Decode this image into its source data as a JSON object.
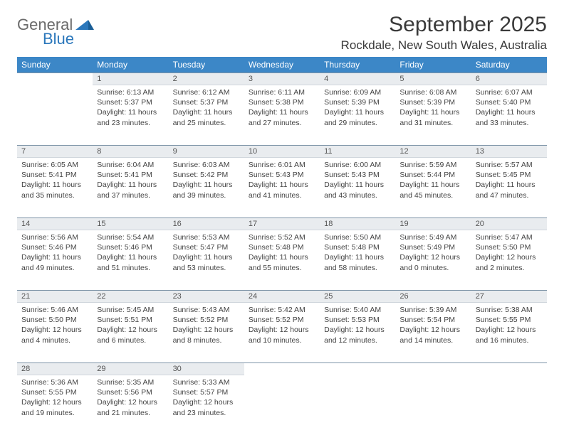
{
  "logo": {
    "word1": "General",
    "word2": "Blue"
  },
  "title": "September 2025",
  "location": "Rockdale, New South Wales, Australia",
  "colors": {
    "header_bg": "#3c87c7",
    "header_text": "#ffffff",
    "daynum_bg": "#e9ecef",
    "daynum_border_top": "#7e94a8",
    "logo_gray": "#6a6a6a",
    "logo_blue": "#2b77bb"
  },
  "weekdays": [
    "Sunday",
    "Monday",
    "Tuesday",
    "Wednesday",
    "Thursday",
    "Friday",
    "Saturday"
  ],
  "first_weekday_index": 1,
  "days_in_month": 30,
  "days": {
    "1": {
      "sunrise": "6:13 AM",
      "sunset": "5:37 PM",
      "daylight": "11 hours and 23 minutes."
    },
    "2": {
      "sunrise": "6:12 AM",
      "sunset": "5:37 PM",
      "daylight": "11 hours and 25 minutes."
    },
    "3": {
      "sunrise": "6:11 AM",
      "sunset": "5:38 PM",
      "daylight": "11 hours and 27 minutes."
    },
    "4": {
      "sunrise": "6:09 AM",
      "sunset": "5:39 PM",
      "daylight": "11 hours and 29 minutes."
    },
    "5": {
      "sunrise": "6:08 AM",
      "sunset": "5:39 PM",
      "daylight": "11 hours and 31 minutes."
    },
    "6": {
      "sunrise": "6:07 AM",
      "sunset": "5:40 PM",
      "daylight": "11 hours and 33 minutes."
    },
    "7": {
      "sunrise": "6:05 AM",
      "sunset": "5:41 PM",
      "daylight": "11 hours and 35 minutes."
    },
    "8": {
      "sunrise": "6:04 AM",
      "sunset": "5:41 PM",
      "daylight": "11 hours and 37 minutes."
    },
    "9": {
      "sunrise": "6:03 AM",
      "sunset": "5:42 PM",
      "daylight": "11 hours and 39 minutes."
    },
    "10": {
      "sunrise": "6:01 AM",
      "sunset": "5:43 PM",
      "daylight": "11 hours and 41 minutes."
    },
    "11": {
      "sunrise": "6:00 AM",
      "sunset": "5:43 PM",
      "daylight": "11 hours and 43 minutes."
    },
    "12": {
      "sunrise": "5:59 AM",
      "sunset": "5:44 PM",
      "daylight": "11 hours and 45 minutes."
    },
    "13": {
      "sunrise": "5:57 AM",
      "sunset": "5:45 PM",
      "daylight": "11 hours and 47 minutes."
    },
    "14": {
      "sunrise": "5:56 AM",
      "sunset": "5:46 PM",
      "daylight": "11 hours and 49 minutes."
    },
    "15": {
      "sunrise": "5:54 AM",
      "sunset": "5:46 PM",
      "daylight": "11 hours and 51 minutes."
    },
    "16": {
      "sunrise": "5:53 AM",
      "sunset": "5:47 PM",
      "daylight": "11 hours and 53 minutes."
    },
    "17": {
      "sunrise": "5:52 AM",
      "sunset": "5:48 PM",
      "daylight": "11 hours and 55 minutes."
    },
    "18": {
      "sunrise": "5:50 AM",
      "sunset": "5:48 PM",
      "daylight": "11 hours and 58 minutes."
    },
    "19": {
      "sunrise": "5:49 AM",
      "sunset": "5:49 PM",
      "daylight": "12 hours and 0 minutes."
    },
    "20": {
      "sunrise": "5:47 AM",
      "sunset": "5:50 PM",
      "daylight": "12 hours and 2 minutes."
    },
    "21": {
      "sunrise": "5:46 AM",
      "sunset": "5:50 PM",
      "daylight": "12 hours and 4 minutes."
    },
    "22": {
      "sunrise": "5:45 AM",
      "sunset": "5:51 PM",
      "daylight": "12 hours and 6 minutes."
    },
    "23": {
      "sunrise": "5:43 AM",
      "sunset": "5:52 PM",
      "daylight": "12 hours and 8 minutes."
    },
    "24": {
      "sunrise": "5:42 AM",
      "sunset": "5:52 PM",
      "daylight": "12 hours and 10 minutes."
    },
    "25": {
      "sunrise": "5:40 AM",
      "sunset": "5:53 PM",
      "daylight": "12 hours and 12 minutes."
    },
    "26": {
      "sunrise": "5:39 AM",
      "sunset": "5:54 PM",
      "daylight": "12 hours and 14 minutes."
    },
    "27": {
      "sunrise": "5:38 AM",
      "sunset": "5:55 PM",
      "daylight": "12 hours and 16 minutes."
    },
    "28": {
      "sunrise": "5:36 AM",
      "sunset": "5:55 PM",
      "daylight": "12 hours and 19 minutes."
    },
    "29": {
      "sunrise": "5:35 AM",
      "sunset": "5:56 PM",
      "daylight": "12 hours and 21 minutes."
    },
    "30": {
      "sunrise": "5:33 AM",
      "sunset": "5:57 PM",
      "daylight": "12 hours and 23 minutes."
    }
  },
  "labels": {
    "sunrise": "Sunrise:",
    "sunset": "Sunset:",
    "daylight": "Daylight:"
  }
}
